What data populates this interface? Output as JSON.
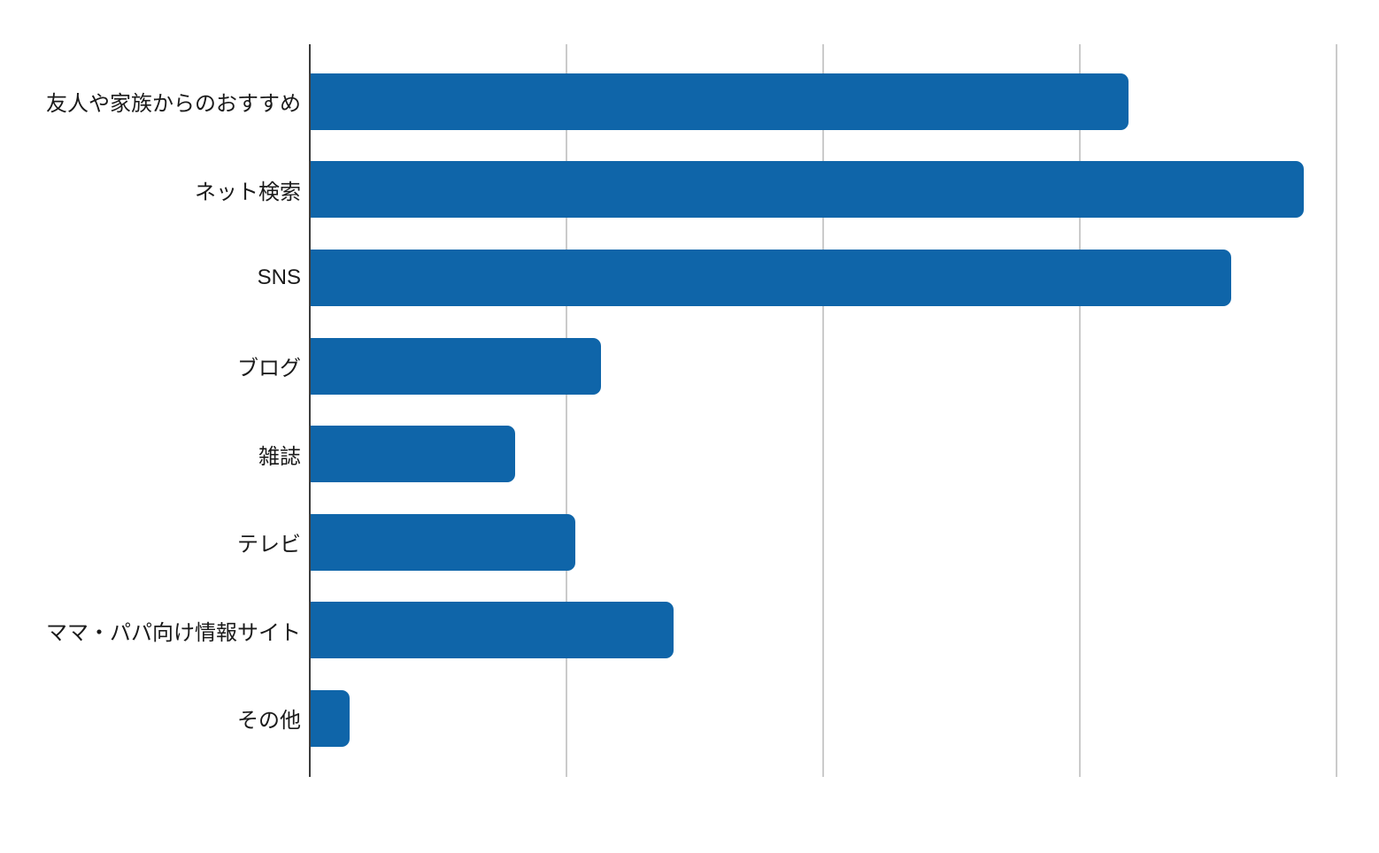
{
  "chart_data": {
    "type": "bar",
    "orientation": "horizontal",
    "title": "",
    "xlabel": "",
    "ylabel": "",
    "categories": [
      "友人や家族からのおすすめ",
      "ネット検索",
      "SNS",
      "ブログ",
      "雑誌",
      "テレビ",
      "ママ・パパ向け情報サイト",
      "その他"
    ],
    "values": [
      63.7,
      77.4,
      71.7,
      22.6,
      15.9,
      20.6,
      28.3,
      3.0
    ],
    "xlim": [
      0,
      80
    ],
    "gridline_interval": 20,
    "grid": true,
    "legend": false,
    "axis_tick_labels_visible": false,
    "colors": {
      "bar": "#0f65a9",
      "axis_line": "#3c3c3c",
      "gridline": "#cbcbcb",
      "label_text": "#1a1a1a",
      "background": "#ffffff"
    }
  }
}
